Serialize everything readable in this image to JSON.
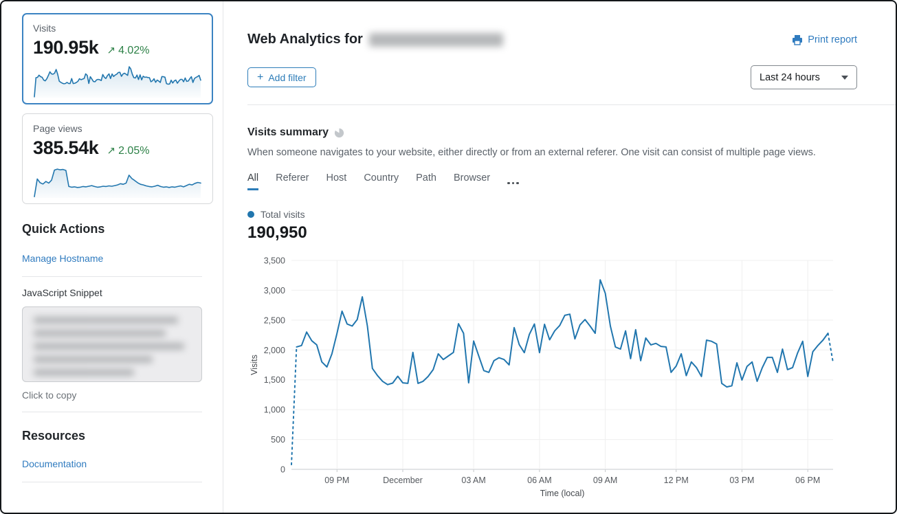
{
  "sidebar": {
    "stat_cards": [
      {
        "label": "Visits",
        "value": "190.95k",
        "trend": "4.02%",
        "trend_direction": "up",
        "selected": true,
        "sparkline_source": "chart_values"
      },
      {
        "label": "Page views",
        "value": "385.54k",
        "trend": "2.05%",
        "trend_direction": "up",
        "selected": false,
        "sparkline": [
          4,
          60,
          48,
          44,
          52,
          47,
          56,
          88,
          91,
          89,
          90,
          87,
          36,
          34,
          35,
          33,
          34,
          36,
          35,
          37,
          39,
          36,
          34,
          35,
          37,
          36,
          38,
          37,
          39,
          41,
          45,
          43,
          47,
          72,
          61,
          55,
          48,
          43,
          41,
          38,
          36,
          35,
          37,
          40,
          36,
          34,
          35,
          33,
          35,
          34,
          36,
          38,
          35,
          39,
          43,
          41,
          46,
          49,
          47
        ]
      }
    ],
    "quick_actions": {
      "heading": "Quick Actions",
      "link_manage": "Manage Hostname",
      "snippet_label": "JavaScript Snippet",
      "snippet_redacted": true,
      "copy_hint": "Click to copy"
    },
    "resources": {
      "heading": "Resources",
      "link_docs": "Documentation"
    }
  },
  "header": {
    "title": "Web Analytics for",
    "domain_redacted": true,
    "print_label": "Print report",
    "add_filter_label": "Add filter",
    "plus_glyph": "+",
    "range_selected": "Last 24 hours"
  },
  "summary": {
    "title": "Visits summary",
    "description": "When someone navigates to your website, either directly or from an external referer. One visit can consist of multiple page views.",
    "tabs": [
      "All",
      "Referer",
      "Host",
      "Country",
      "Path",
      "Browser"
    ],
    "active_tab": "All",
    "legend_label": "Total visits",
    "total_value": "190,950"
  },
  "trend_arrow_glyph": "↗",
  "colors": {
    "line": "#2176ae",
    "link": "#2f7bbf",
    "accent_border": "#2c7cb8",
    "green": "#2d8147",
    "grid": "#efefef",
    "axis": "#c6c9cc",
    "axis_text": "#55595e",
    "selected_card": "#3b83c2"
  },
  "chart_data": {
    "type": "line",
    "title": "Total visits",
    "xlabel": "Time (local)",
    "ylabel": "Visits",
    "ylim": [
      0,
      3500
    ],
    "grid": true,
    "legend_position": "top-left",
    "y_ticks": [
      0,
      500,
      1000,
      1500,
      2000,
      2500,
      3000,
      3500
    ],
    "x_ticks": [
      {
        "label": "09 PM",
        "i": 9
      },
      {
        "label": "December",
        "i": 22
      },
      {
        "label": "03 AM",
        "i": 36
      },
      {
        "label": "06 AM",
        "i": 49
      },
      {
        "label": "09 AM",
        "i": 62
      },
      {
        "label": "12 PM",
        "i": 76
      },
      {
        "label": "03 PM",
        "i": 89
      },
      {
        "label": "06 PM",
        "i": 102
      }
    ],
    "values": [
      80,
      2050,
      2075,
      2300,
      2155,
      2085,
      1800,
      1715,
      1935,
      2280,
      2650,
      2435,
      2400,
      2510,
      2890,
      2400,
      1690,
      1570,
      1475,
      1420,
      1445,
      1560,
      1450,
      1440,
      1960,
      1440,
      1475,
      1555,
      1670,
      1935,
      1840,
      1900,
      1960,
      2440,
      2280,
      1450,
      2150,
      1900,
      1655,
      1625,
      1820,
      1870,
      1840,
      1750,
      2375,
      2090,
      1955,
      2260,
      2435,
      1955,
      2430,
      2170,
      2320,
      2410,
      2580,
      2600,
      2185,
      2420,
      2510,
      2400,
      2280,
      3175,
      2950,
      2400,
      2050,
      2015,
      2320,
      1855,
      2340,
      1820,
      2200,
      2085,
      2110,
      2060,
      2050,
      1625,
      1730,
      1935,
      1570,
      1800,
      1705,
      1555,
      2165,
      2145,
      2100,
      1440,
      1380,
      1400,
      1785,
      1495,
      1725,
      1800,
      1475,
      1700,
      1875,
      1875,
      1625,
      2015,
      1670,
      1705,
      1950,
      2145,
      1555,
      1970,
      2075,
      2165,
      2280,
      1790
    ],
    "dashed_head_points": 1,
    "dashed_tail_points": 1
  }
}
